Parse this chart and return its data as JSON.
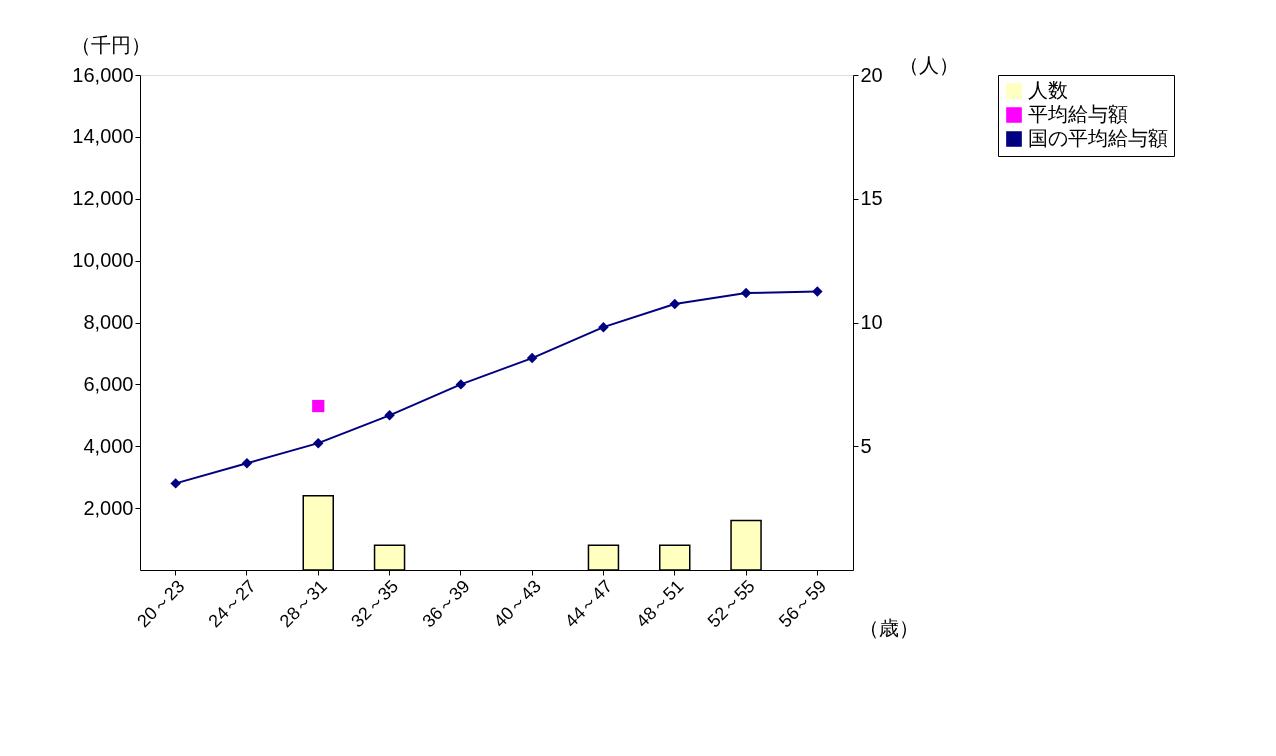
{
  "chart_data": {
    "type": "bar",
    "categories": [
      "20～23",
      "24～27",
      "28～31",
      "32～35",
      "36～39",
      "40～43",
      "44～47",
      "48～51",
      "52～55",
      "56～59"
    ],
    "xlabel": "（歳）",
    "ylabel": "（千円）",
    "y2label": "（人）",
    "ylim": [
      0,
      16000
    ],
    "yticks": [
      {
        "value": 2000,
        "label": "2,000"
      },
      {
        "value": 4000,
        "label": "4,000"
      },
      {
        "value": 6000,
        "label": "6,000"
      },
      {
        "value": 8000,
        "label": "8,000"
      },
      {
        "value": 10000,
        "label": "10,000"
      },
      {
        "value": 12000,
        "label": "12,000"
      },
      {
        "value": 14000,
        "label": "14,000"
      },
      {
        "value": 16000,
        "label": "16,000"
      }
    ],
    "y2lim": [
      0,
      20
    ],
    "y2ticks": [
      5,
      10,
      15,
      20
    ],
    "legend": "right",
    "grid": false,
    "series": [
      {
        "name": "人数",
        "axis": "y2",
        "color": "#ffffc0",
        "values": [
          null,
          null,
          3,
          1,
          null,
          null,
          1,
          1,
          2,
          null
        ]
      },
      {
        "name": "平均給与額",
        "type": "scatter",
        "marker": "square",
        "color": "#ff00ff",
        "values": [
          null,
          null,
          5300,
          null,
          null,
          null,
          null,
          null,
          null,
          null
        ]
      },
      {
        "name": "国の平均給与額",
        "type": "line",
        "marker": "diamond",
        "color": "#000080",
        "values": [
          2800,
          3450,
          4100,
          5000,
          6000,
          6850,
          7850,
          8600,
          8950,
          9000
        ]
      }
    ]
  }
}
